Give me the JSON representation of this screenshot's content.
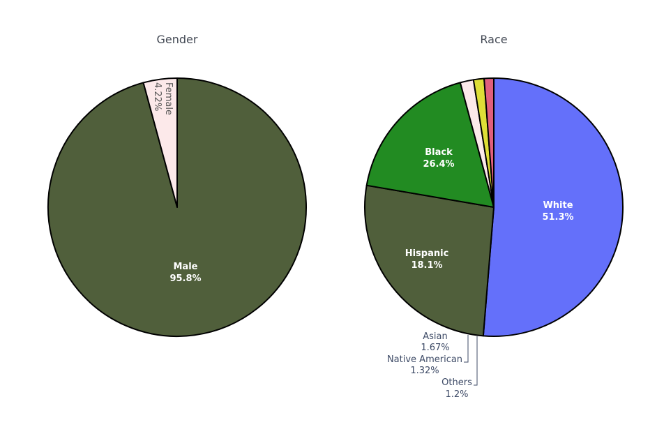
{
  "chart_data": [
    {
      "type": "pie",
      "title": "Gender",
      "slices": [
        {
          "label": "Male",
          "percent_text": "95.8%",
          "value": 95.78,
          "color": "#505f3b"
        },
        {
          "label": "Female",
          "percent_text": "4.22%",
          "value": 4.22,
          "color": "#fce9ea"
        }
      ]
    },
    {
      "type": "pie",
      "title": "Race",
      "slices": [
        {
          "label": "White",
          "percent_text": "51.3%",
          "value": 51.3,
          "color": "#6470fa"
        },
        {
          "label": "Black",
          "percent_text": "26.4%",
          "value": 26.4,
          "color": "#505f3b"
        },
        {
          "label": "Hispanic",
          "percent_text": "18.1%",
          "value": 18.1,
          "color": "#228b22"
        },
        {
          "label": "Asian",
          "percent_text": "1.67%",
          "value": 1.67,
          "color": "#fce9ea"
        },
        {
          "label": "Native American",
          "percent_text": "1.32%",
          "value": 1.32,
          "color": "#dede37"
        },
        {
          "label": "Others",
          "percent_text": "1.2%",
          "value": 1.2,
          "color": "#e05f7d"
        }
      ]
    }
  ]
}
